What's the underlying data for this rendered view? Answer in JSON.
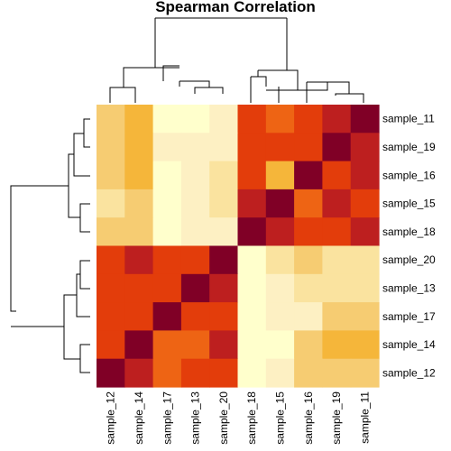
{
  "chart_data": {
    "type": "heatmap",
    "title": "Spearman Correlation",
    "row_labels": [
      "sample_11",
      "sample_19",
      "sample_16",
      "sample_15",
      "sample_18",
      "sample_20",
      "sample_13",
      "sample_17",
      "sample_14",
      "sample_12"
    ],
    "col_labels": [
      "sample_12",
      "sample_14",
      "sample_17",
      "sample_13",
      "sample_20",
      "sample_18",
      "sample_15",
      "sample_16",
      "sample_19",
      "sample_11"
    ],
    "color_scale": [
      "#800026",
      "#bd1f1f",
      "#e33d0b",
      "#ee6414",
      "#f5b63a",
      "#f6cc72",
      "#fae39f",
      "#fdf0c3",
      "#ffffcc"
    ],
    "values": [
      [
        5,
        4,
        8,
        8,
        7,
        2,
        3,
        2,
        1,
        0
      ],
      [
        5,
        4,
        7,
        7,
        7,
        2,
        2,
        2,
        0,
        1
      ],
      [
        5,
        4,
        8,
        7,
        6,
        2,
        4,
        0,
        2,
        1
      ],
      [
        6,
        5,
        8,
        7,
        6,
        1,
        0,
        3,
        1,
        2
      ],
      [
        5,
        5,
        8,
        7,
        7,
        0,
        1,
        2,
        2,
        1
      ],
      [
        2,
        1,
        2,
        2,
        0,
        8,
        6,
        5,
        6,
        6
      ],
      [
        2,
        2,
        2,
        0,
        1,
        8,
        7,
        6,
        6,
        6
      ],
      [
        2,
        2,
        0,
        2,
        2,
        8,
        7,
        7,
        5,
        5
      ],
      [
        2,
        0,
        3,
        3,
        1,
        8,
        8,
        5,
        4,
        4
      ],
      [
        0,
        1,
        3,
        2,
        2,
        8,
        7,
        5,
        5,
        5
      ]
    ]
  }
}
